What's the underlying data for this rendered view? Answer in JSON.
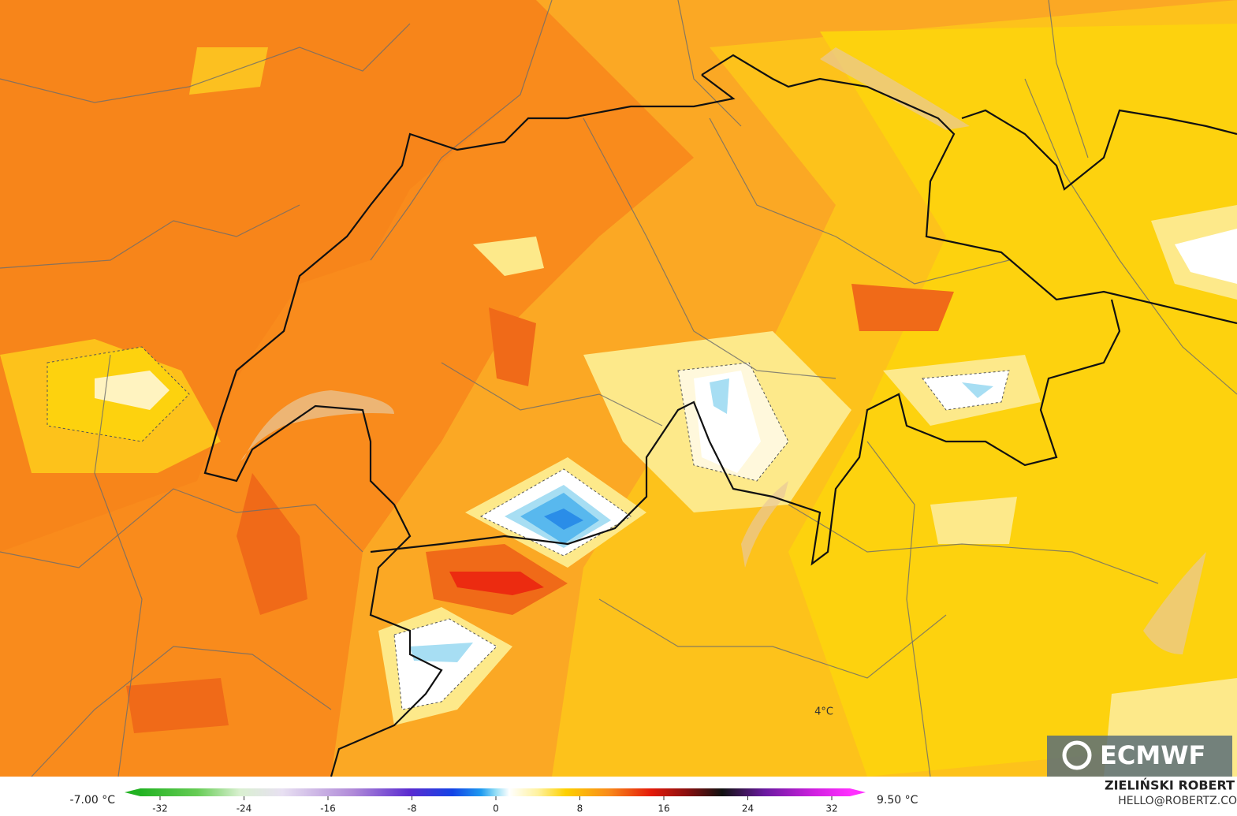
{
  "map": {
    "min_label": "-7.00 °C",
    "max_label": "9.50 °C",
    "contour_label": "4°C"
  },
  "colorbar": {
    "ticks": [
      -32,
      -24,
      -16,
      -8,
      0,
      8,
      16,
      24,
      32
    ]
  },
  "logo": "ECMWF",
  "credit": {
    "name": "ZIELIŃSKI ROBERT",
    "email": "HELLO@ROBERTZ.CO"
  }
}
